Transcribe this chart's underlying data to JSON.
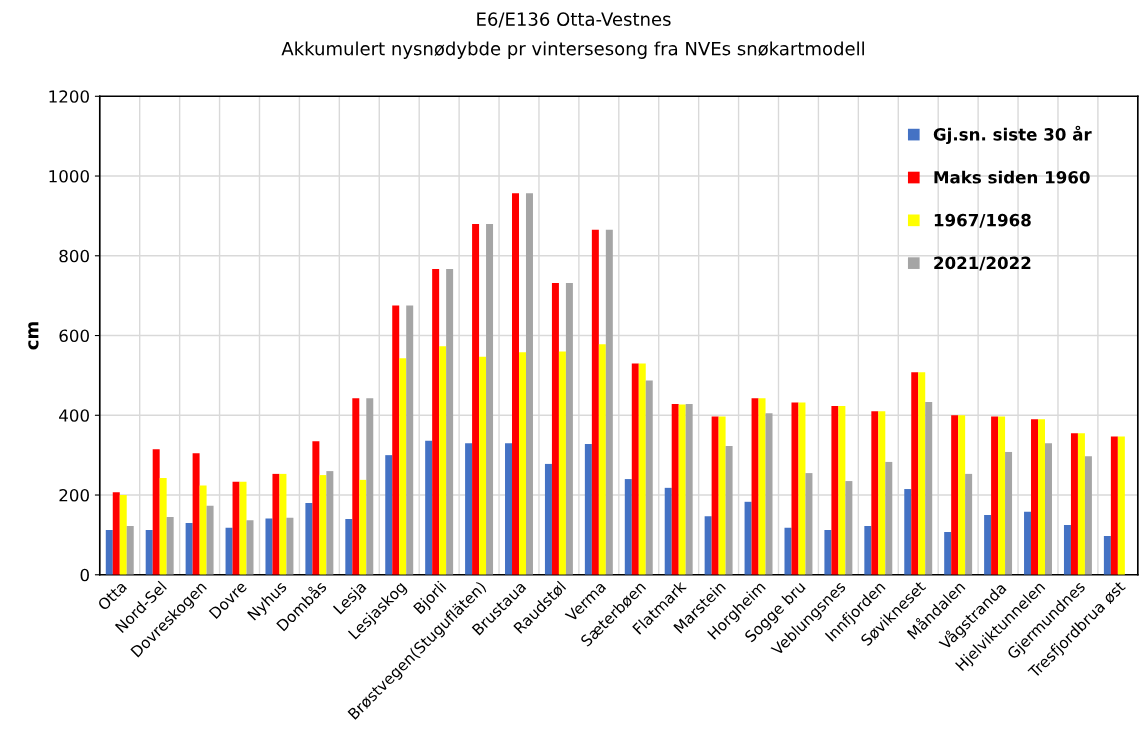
{
  "chart_data": {
    "type": "bar",
    "title": "E6/E136 Otta-Vestnes",
    "subtitle": "Akkumulert nysnødybde pr vintersesong fra NVEs snøkartmodell",
    "ylabel": "cm",
    "categories": [
      "Otta",
      "Nord-Sel",
      "Dovreskogen",
      "Dovre",
      "Nyhus",
      "Dombås",
      "Lesja",
      "Lesjaskog",
      "Bjorli",
      "Brøstvegen(Stugufläten)",
      "Brustaua",
      "Raudstøl",
      "Verma",
      "Sæterbøen",
      "Flatmark",
      "Marstein",
      "Horgheim",
      "Sogge bru",
      "Veblungsnes",
      "Innfjorden",
      "Søvikneset",
      "Måndalen",
      "Vågstranda",
      "Hjelviktunnelen",
      "Gjermundnes",
      "Tresfjordbrua øst"
    ],
    "series": [
      {
        "name": "Gj.sn. siste 30 år",
        "color": "#4472c4",
        "values": [
          112,
          112,
          130,
          118,
          141,
          180,
          140,
          300,
          336,
          330,
          330,
          278,
          328,
          240,
          218,
          147,
          183,
          118,
          112,
          122,
          215,
          107,
          150,
          158,
          125,
          97
        ]
      },
      {
        "name": "Maks siden 1960",
        "color": "#ff0000",
        "values": [
          207,
          315,
          305,
          233,
          253,
          335,
          443,
          675,
          767,
          880,
          957,
          732,
          865,
          530,
          428,
          397,
          443,
          432,
          423,
          410,
          508,
          400,
          397,
          390,
          355,
          347
        ]
      },
      {
        "name": "1967/1968",
        "color": "#ffff00",
        "values": [
          200,
          243,
          224,
          233,
          253,
          250,
          238,
          543,
          573,
          547,
          558,
          560,
          578,
          530,
          427,
          397,
          443,
          432,
          423,
          410,
          508,
          400,
          397,
          390,
          355,
          347
        ]
      },
      {
        "name": "2021/2022",
        "color": "#a5a5a5",
        "values": [
          122,
          145,
          173,
          137,
          143,
          260,
          443,
          675,
          767,
          880,
          957,
          732,
          865,
          487,
          428,
          323,
          405,
          255,
          235,
          283,
          433,
          253,
          308,
          330,
          297,
          null
        ]
      }
    ],
    "ylim": [
      0,
      1200
    ],
    "yticks": [
      0,
      200,
      400,
      600,
      800,
      1000,
      1200
    ],
    "grid": true,
    "legend": "top right"
  }
}
